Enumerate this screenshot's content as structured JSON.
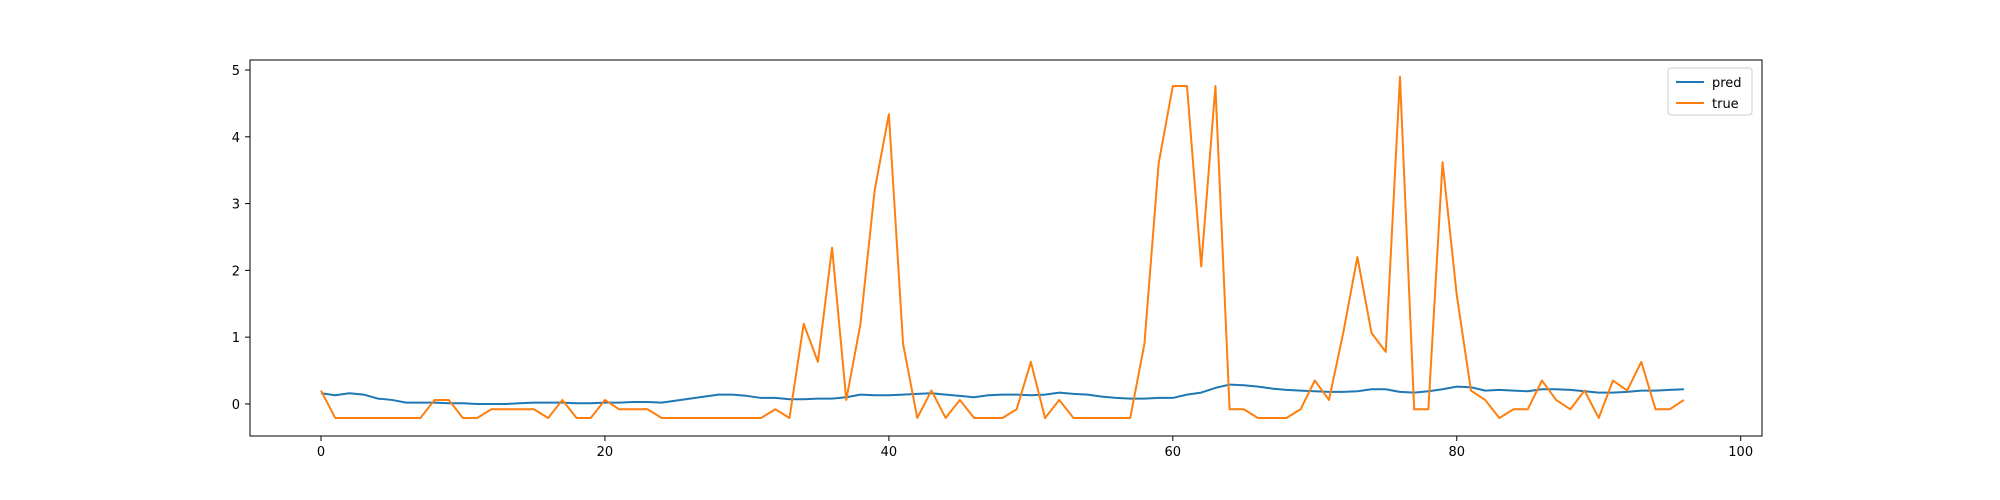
{
  "chart_data": {
    "type": "line",
    "title": "",
    "xlabel": "",
    "ylabel": "",
    "xlim": [
      -5.0,
      101.5
    ],
    "ylim": [
      -0.48,
      5.15
    ],
    "x_ticks": [
      0,
      20,
      40,
      60,
      80,
      100
    ],
    "y_ticks": [
      0,
      1,
      2,
      3,
      4,
      5
    ],
    "grid": false,
    "legend_position": "top-right",
    "series": [
      {
        "name": "pred",
        "color": "#1f77b4",
        "x": [
          0,
          1,
          2,
          3,
          4,
          5,
          6,
          7,
          8,
          9,
          10,
          11,
          12,
          13,
          14,
          15,
          16,
          17,
          18,
          19,
          20,
          21,
          22,
          23,
          24,
          25,
          26,
          27,
          28,
          29,
          30,
          31,
          32,
          33,
          34,
          35,
          36,
          37,
          38,
          39,
          40,
          41,
          42,
          43,
          44,
          45,
          46,
          47,
          48,
          49,
          50,
          51,
          52,
          53,
          54,
          55,
          56,
          57,
          58,
          59,
          60,
          61,
          62,
          63,
          64,
          65,
          66,
          67,
          68,
          69,
          70,
          71,
          72,
          73,
          74,
          75,
          76,
          77,
          78,
          79,
          80,
          81,
          82,
          83,
          84,
          85,
          86,
          87,
          88,
          89,
          90,
          91,
          92,
          93,
          94,
          95,
          96
        ],
        "values": [
          0.16,
          0.13,
          0.16,
          0.14,
          0.08,
          0.06,
          0.02,
          0.02,
          0.02,
          0.01,
          0.01,
          0.0,
          0.0,
          0.0,
          0.01,
          0.02,
          0.02,
          0.02,
          0.01,
          0.01,
          0.02,
          0.02,
          0.03,
          0.03,
          0.02,
          0.05,
          0.08,
          0.11,
          0.14,
          0.14,
          0.12,
          0.09,
          0.09,
          0.07,
          0.07,
          0.08,
          0.08,
          0.1,
          0.14,
          0.13,
          0.13,
          0.14,
          0.15,
          0.16,
          0.14,
          0.12,
          0.1,
          0.13,
          0.14,
          0.14,
          0.13,
          0.14,
          0.17,
          0.15,
          0.14,
          0.11,
          0.09,
          0.08,
          0.08,
          0.09,
          0.09,
          0.14,
          0.17,
          0.24,
          0.29,
          0.28,
          0.26,
          0.23,
          0.21,
          0.2,
          0.19,
          0.18,
          0.18,
          0.19,
          0.22,
          0.22,
          0.18,
          0.17,
          0.19,
          0.22,
          0.26,
          0.25,
          0.2,
          0.21,
          0.2,
          0.19,
          0.22,
          0.22,
          0.21,
          0.19,
          0.17,
          0.17,
          0.18,
          0.2,
          0.2,
          0.21,
          0.22
        ]
      },
      {
        "name": "true",
        "color": "#ff7f0e",
        "x": [
          0,
          1,
          2,
          3,
          4,
          5,
          6,
          7,
          8,
          9,
          10,
          11,
          12,
          13,
          14,
          15,
          16,
          17,
          18,
          19,
          20,
          21,
          22,
          23,
          24,
          25,
          26,
          27,
          28,
          29,
          30,
          31,
          32,
          33,
          34,
          35,
          36,
          37,
          38,
          39,
          40,
          41,
          42,
          43,
          44,
          45,
          46,
          47,
          48,
          49,
          50,
          51,
          52,
          53,
          54,
          55,
          56,
          57,
          58,
          59,
          60,
          61,
          62,
          63,
          64,
          65,
          66,
          67,
          68,
          69,
          70,
          71,
          72,
          73,
          74,
          75,
          76,
          77,
          78,
          79,
          80,
          81,
          82,
          83,
          84,
          85,
          86,
          87,
          88,
          89,
          90,
          91,
          92,
          93,
          94,
          95,
          96
        ],
        "values": [
          0.2,
          -0.21,
          -0.21,
          -0.21,
          -0.21,
          -0.21,
          -0.21,
          -0.21,
          0.06,
          0.06,
          -0.21,
          -0.21,
          -0.08,
          -0.08,
          -0.08,
          -0.08,
          -0.21,
          0.06,
          -0.21,
          -0.21,
          0.06,
          -0.08,
          -0.08,
          -0.08,
          -0.21,
          -0.21,
          -0.21,
          -0.21,
          -0.21,
          -0.21,
          -0.21,
          -0.21,
          -0.08,
          -0.21,
          1.2,
          0.63,
          2.34,
          0.06,
          1.2,
          3.2,
          4.34,
          0.9,
          -0.21,
          0.2,
          -0.21,
          0.06,
          -0.21,
          -0.21,
          -0.21,
          -0.08,
          0.63,
          -0.21,
          0.06,
          -0.21,
          -0.21,
          -0.21,
          -0.21,
          -0.21,
          0.9,
          3.6,
          4.76,
          4.76,
          2.06,
          4.76,
          -0.08,
          -0.08,
          -0.21,
          -0.21,
          -0.21,
          -0.08,
          0.35,
          0.06,
          1.06,
          2.2,
          1.06,
          0.78,
          4.9,
          -0.08,
          -0.08,
          3.62,
          1.63,
          0.2,
          0.06,
          -0.21,
          -0.08,
          -0.08,
          0.35,
          0.06,
          -0.08,
          0.2,
          -0.21,
          0.35,
          0.2,
          0.63,
          -0.08,
          -0.08,
          0.06
        ]
      }
    ]
  }
}
